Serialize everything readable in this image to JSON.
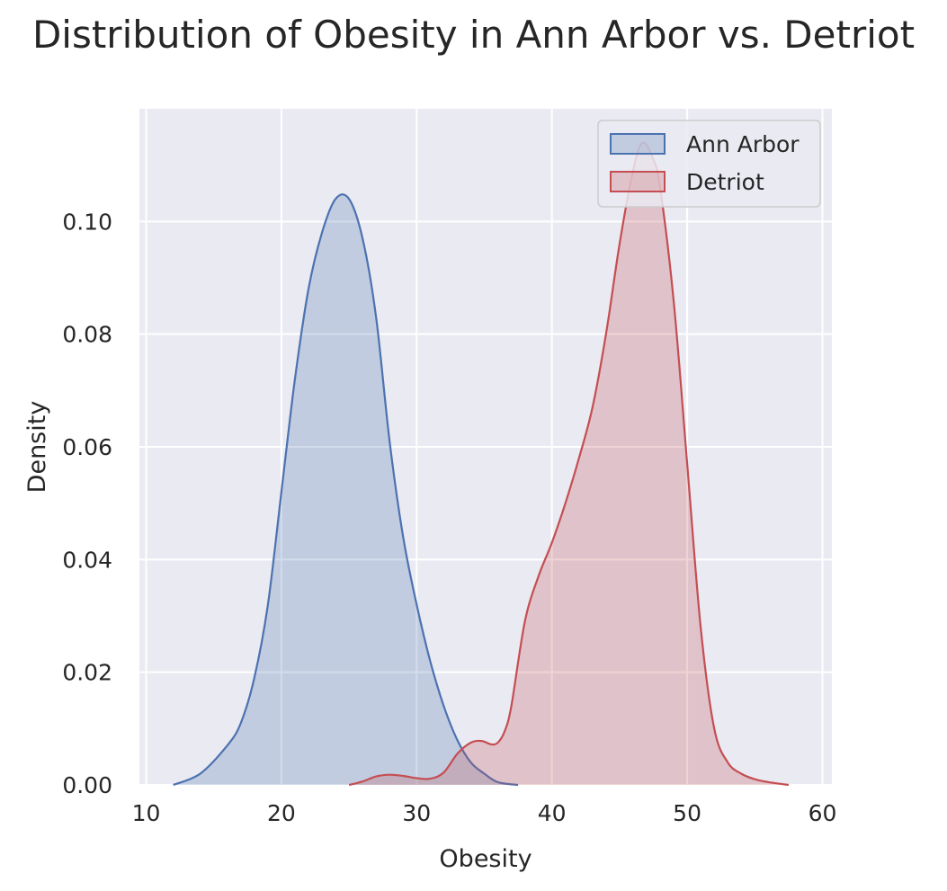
{
  "chart_data": {
    "type": "area",
    "title": "Distribution of Obesity in Ann Arbor vs. Detriot",
    "xlabel": "Obesity",
    "ylabel": "Density",
    "xlim": [
      9.5,
      60.7
    ],
    "ylim": [
      0,
      0.12
    ],
    "x_ticks": [
      10,
      20,
      30,
      40,
      50,
      60
    ],
    "y_ticks": [
      0.0,
      0.02,
      0.04,
      0.06,
      0.08,
      0.1
    ],
    "x_tick_labels": [
      "10",
      "20",
      "30",
      "40",
      "50",
      "60"
    ],
    "y_tick_labels": [
      "0.00",
      "0.02",
      "0.04",
      "0.06",
      "0.08",
      "0.10"
    ],
    "grid": true,
    "legend_position": "top-right",
    "background": "#eaeaf2",
    "series": [
      {
        "name": "Ann Arbor",
        "color": "#4c72b0",
        "x": [
          12,
          14,
          16,
          17,
          18,
          19,
          20,
          21,
          22,
          23,
          24,
          25,
          26,
          27,
          28,
          29,
          30,
          31,
          32,
          33,
          34,
          35,
          36,
          37.5
        ],
        "y": [
          0.0,
          0.002,
          0.007,
          0.011,
          0.019,
          0.032,
          0.052,
          0.072,
          0.088,
          0.098,
          0.104,
          0.104,
          0.097,
          0.083,
          0.061,
          0.044,
          0.032,
          0.022,
          0.014,
          0.008,
          0.004,
          0.002,
          0.0005,
          0.0
        ]
      },
      {
        "name": "Detriot",
        "color": "#c44e52",
        "x": [
          25,
          26,
          27,
          28,
          29,
          30,
          31,
          32,
          33,
          34,
          34.8,
          35.5,
          36,
          36.5,
          37,
          38,
          39,
          40,
          41,
          42,
          43,
          44,
          45,
          46,
          46.7,
          47.5,
          48,
          49,
          50,
          51,
          52,
          53,
          54,
          55,
          56,
          57.5
        ],
        "y": [
          0.0,
          0.0006,
          0.0015,
          0.0018,
          0.0016,
          0.0012,
          0.0011,
          0.0022,
          0.0055,
          0.0075,
          0.0078,
          0.0072,
          0.0075,
          0.0095,
          0.014,
          0.029,
          0.037,
          0.043,
          0.05,
          0.058,
          0.067,
          0.08,
          0.096,
          0.109,
          0.114,
          0.111,
          0.106,
          0.086,
          0.057,
          0.028,
          0.01,
          0.004,
          0.002,
          0.001,
          0.0005,
          0.0
        ]
      }
    ]
  }
}
